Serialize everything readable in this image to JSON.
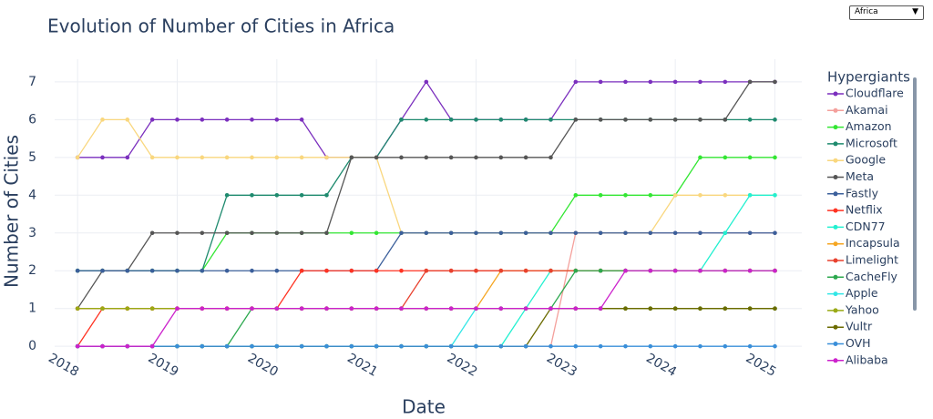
{
  "dropdown": {
    "selected": "Africa",
    "arrow": "▼"
  },
  "chart_data": {
    "type": "line",
    "title": "Evolution of Number of Cities in Africa",
    "x_label": "Date",
    "y_label": "Number of Cities",
    "legend_title": "Hypergiants",
    "x": [
      2018,
      2018.25,
      2018.5,
      2018.75,
      2019,
      2019.25,
      2019.5,
      2019.75,
      2020,
      2020.25,
      2020.5,
      2020.75,
      2021,
      2021.25,
      2021.5,
      2021.75,
      2022,
      2022.25,
      2022.5,
      2022.75,
      2023,
      2023.25,
      2023.5,
      2023.75,
      2024,
      2024.25,
      2024.5,
      2024.75,
      2025
    ],
    "xlim": [
      2017.77,
      2025.27
    ],
    "xticks": [
      2018,
      2019,
      2020,
      2021,
      2022,
      2023,
      2024,
      2025
    ],
    "ylim": [
      -0.43,
      7.6
    ],
    "yticks": [
      0,
      1,
      2,
      3,
      4,
      5,
      6,
      7
    ],
    "grid": true,
    "series": [
      {
        "name": "Cloudflare",
        "color": "#7b2fbe",
        "values": [
          5,
          5,
          5,
          6,
          6,
          6,
          6,
          6,
          6,
          6,
          5,
          5,
          5,
          6,
          7,
          6,
          6,
          6,
          6,
          6,
          7,
          7,
          7,
          7,
          7,
          7,
          7,
          7,
          7
        ]
      },
      {
        "name": "Akamai",
        "color": "#f4a09c",
        "values": [
          0,
          0,
          0,
          0,
          0,
          0,
          0,
          0,
          0,
          0,
          0,
          0,
          0,
          0,
          0,
          0,
          0,
          0,
          0,
          0,
          3,
          3,
          3,
          3,
          3,
          3,
          3,
          3,
          3
        ]
      },
      {
        "name": "Amazon",
        "color": "#33e633",
        "values": [
          2,
          2,
          2,
          2,
          2,
          2,
          3,
          3,
          3,
          3,
          3,
          3,
          3,
          3,
          3,
          3,
          3,
          3,
          3,
          3,
          4,
          4,
          4,
          4,
          4,
          5,
          5,
          5,
          5
        ]
      },
      {
        "name": "Microsoft",
        "color": "#1e8a6e",
        "values": [
          2,
          2,
          2,
          2,
          2,
          2,
          4,
          4,
          4,
          4,
          4,
          5,
          5,
          6,
          6,
          6,
          6,
          6,
          6,
          6,
          6,
          6,
          6,
          6,
          6,
          6,
          6,
          6,
          6
        ]
      },
      {
        "name": "Google",
        "color": "#f9d77e",
        "values": [
          5,
          6,
          6,
          5,
          5,
          5,
          5,
          5,
          5,
          5,
          5,
          5,
          5,
          3,
          3,
          3,
          3,
          3,
          3,
          3,
          3,
          3,
          3,
          3,
          4,
          4,
          4,
          4,
          4
        ]
      },
      {
        "name": "Meta",
        "color": "#555555",
        "values": [
          1,
          2,
          2,
          3,
          3,
          3,
          3,
          3,
          3,
          3,
          3,
          5,
          5,
          5,
          5,
          5,
          5,
          5,
          5,
          5,
          6,
          6,
          6,
          6,
          6,
          6,
          6,
          7,
          7
        ]
      },
      {
        "name": "Fastly",
        "color": "#3b5f9b",
        "values": [
          2,
          2,
          2,
          2,
          2,
          2,
          2,
          2,
          2,
          2,
          2,
          2,
          2,
          3,
          3,
          3,
          3,
          3,
          3,
          3,
          3,
          3,
          3,
          3,
          3,
          3,
          3,
          3,
          3
        ]
      },
      {
        "name": "Netflix",
        "color": "#ff3322",
        "values": [
          0,
          1,
          1,
          1,
          1,
          1,
          1,
          1,
          1,
          2,
          2,
          2,
          2,
          2,
          2,
          2,
          2,
          2,
          2,
          2,
          2,
          2,
          2,
          2,
          2,
          2,
          2,
          2,
          2
        ]
      },
      {
        "name": "CDN77",
        "color": "#22f0d0",
        "values": [
          0,
          0,
          0,
          0,
          0,
          0,
          0,
          0,
          0,
          0,
          0,
          0,
          0,
          0,
          0,
          0,
          0,
          0,
          1,
          2,
          2,
          2,
          2,
          2,
          2,
          2,
          3,
          4,
          4
        ]
      },
      {
        "name": "Incapsula",
        "color": "#f5a623",
        "values": [
          1,
          1,
          1,
          1,
          1,
          1,
          1,
          1,
          1,
          1,
          1,
          1,
          1,
          1,
          1,
          1,
          1,
          2,
          2,
          2,
          2,
          2,
          2,
          2,
          2,
          2,
          2,
          2,
          2
        ]
      },
      {
        "name": "Limelight",
        "color": "#e8412e",
        "values": [
          1,
          1,
          1,
          1,
          1,
          1,
          1,
          1,
          1,
          1,
          1,
          1,
          1,
          1,
          2,
          2,
          2,
          2,
          2,
          2,
          2,
          2,
          2,
          2,
          2,
          2,
          2,
          2,
          2
        ]
      },
      {
        "name": "CacheFly",
        "color": "#2ca84e",
        "values": [
          0,
          0,
          0,
          0,
          0,
          0,
          0,
          1,
          1,
          1,
          1,
          1,
          1,
          1,
          1,
          1,
          1,
          1,
          1,
          1,
          2,
          2,
          2,
          2,
          2,
          2,
          2,
          2,
          2
        ]
      },
      {
        "name": "Apple",
        "color": "#33e6e6",
        "values": [
          0,
          0,
          0,
          0,
          0,
          0,
          0,
          0,
          0,
          0,
          0,
          0,
          0,
          0,
          0,
          0,
          1,
          1,
          1,
          1,
          1,
          1,
          1,
          1,
          1,
          1,
          1,
          1,
          1
        ]
      },
      {
        "name": "Yahoo",
        "color": "#9aaa16",
        "values": [
          1,
          1,
          1,
          1,
          1,
          1,
          1,
          1,
          1,
          1,
          1,
          1,
          1,
          1,
          1,
          1,
          1,
          1,
          1,
          1,
          1,
          1,
          1,
          1,
          1,
          1,
          1,
          1,
          1
        ]
      },
      {
        "name": "Vultr",
        "color": "#6b6b00",
        "values": [
          0,
          0,
          0,
          0,
          0,
          0,
          0,
          0,
          0,
          0,
          0,
          0,
          0,
          0,
          0,
          0,
          0,
          0,
          0,
          1,
          1,
          1,
          1,
          1,
          1,
          1,
          1,
          1,
          1
        ]
      },
      {
        "name": "OVH",
        "color": "#3a8fd9",
        "values": [
          0,
          0,
          0,
          0,
          0,
          0,
          0,
          0,
          0,
          0,
          0,
          0,
          0,
          0,
          0,
          0,
          0,
          0,
          0,
          0,
          0,
          0,
          0,
          0,
          0,
          0,
          0,
          0,
          0
        ]
      },
      {
        "name": "Alibaba",
        "color": "#cc22cc",
        "values": [
          0,
          0,
          0,
          0,
          1,
          1,
          1,
          1,
          1,
          1,
          1,
          1,
          1,
          1,
          1,
          1,
          1,
          1,
          1,
          1,
          1,
          1,
          2,
          2,
          2,
          2,
          2,
          2,
          2
        ]
      }
    ]
  }
}
